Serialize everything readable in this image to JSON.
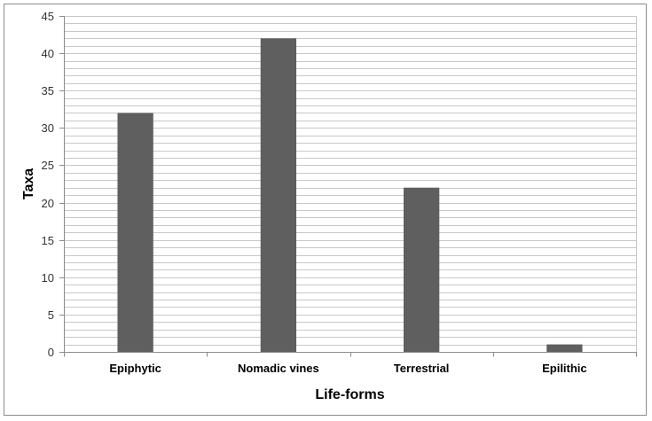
{
  "chart_data": {
    "type": "bar",
    "title": "",
    "xlabel": "Life-forms",
    "ylabel": "Taxa",
    "categories": [
      "Epiphytic",
      "Nomadic vines",
      "Terrestrial",
      "Epilithic"
    ],
    "values": [
      32,
      42,
      22,
      1
    ],
    "ylim": [
      0,
      45
    ],
    "major_ticks": [
      0,
      5,
      10,
      15,
      20,
      25,
      30,
      35,
      40,
      45
    ],
    "minor_grid_step": 1,
    "grid": true,
    "legend": "none",
    "colors": {
      "bar": "#5f5f5f",
      "grid": "#c8c8c8",
      "axis": "#8c8c8c"
    }
  }
}
